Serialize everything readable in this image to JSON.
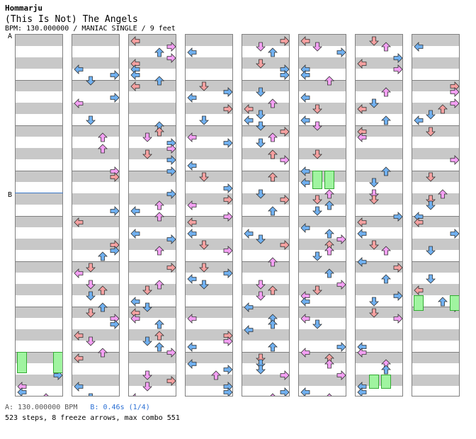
{
  "header": {
    "artist": "Hommarju",
    "title": "(This Is Not) The Angels",
    "meta": "BPM: 130.000000 / MANIAC SINGLE / 9 feet"
  },
  "markers": [
    {
      "label": "A",
      "lane": 0,
      "row": 0
    },
    {
      "label": "B",
      "lane": 0,
      "row": 28
    }
  ],
  "colors": {
    "red": "#f4a0a0",
    "blue": "#70b0f0",
    "pink": "#f4a0f4",
    "green": "#a0f4a0"
  },
  "footer": {
    "bpm_a": "A: 130.000000 BPM",
    "bpm_b": "B: 0.46s (1/4)",
    "stats": "523 steps, 8 freeze arrows, max combo 551"
  },
  "icons": [
    "arrow-left-icon",
    "arrow-down-icon",
    "arrow-up-icon",
    "arrow-right-icon",
    "freeze-arrow-icon"
  ]
}
